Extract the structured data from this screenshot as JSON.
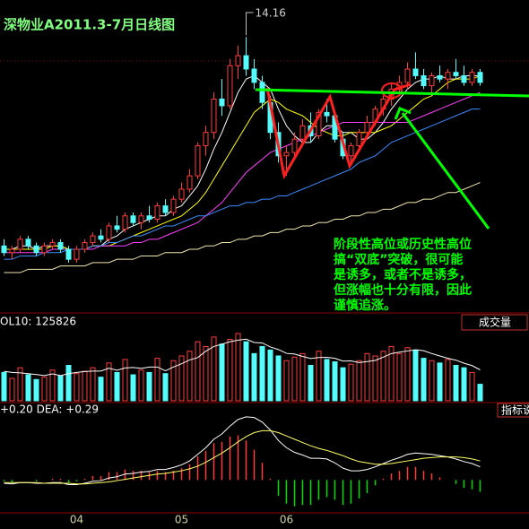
{
  "chart_data": [
    {
      "type": "candlestick",
      "title": "深物业A2011.3-7月日线图",
      "categories": [
        null,
        null,
        null,
        null,
        null,
        null,
        null,
        null,
        null,
        "04",
        null,
        null,
        null,
        null,
        null,
        null,
        null,
        null,
        null,
        null,
        null,
        null,
        "05",
        null,
        null,
        null,
        null,
        null,
        null,
        null,
        null,
        null,
        null,
        null,
        null,
        "06",
        null,
        null,
        null,
        null,
        null,
        null,
        null,
        null,
        null,
        null,
        null,
        null,
        null,
        null,
        null,
        null,
        null,
        null,
        null,
        null,
        null,
        null,
        null,
        null
      ],
      "candles": [
        [
          7.9,
          8.1,
          7.6,
          7.7
        ],
        [
          7.7,
          7.9,
          7.5,
          7.8
        ],
        [
          7.8,
          8.2,
          7.7,
          8.1
        ],
        [
          8.1,
          8.2,
          7.8,
          7.9
        ],
        [
          7.9,
          8.0,
          7.6,
          7.7
        ],
        [
          7.7,
          8.0,
          7.6,
          7.9
        ],
        [
          7.9,
          8.1,
          7.8,
          8.0
        ],
        [
          8.0,
          8.1,
          7.7,
          7.8
        ],
        [
          7.8,
          7.9,
          7.4,
          7.5
        ],
        [
          7.5,
          7.9,
          7.4,
          7.8
        ],
        [
          7.8,
          8.1,
          7.7,
          8.0
        ],
        [
          8.0,
          8.3,
          7.9,
          8.2
        ],
        [
          8.2,
          8.4,
          8.0,
          8.1
        ],
        [
          8.1,
          8.6,
          8.0,
          8.5
        ],
        [
          8.5,
          8.8,
          8.3,
          8.4
        ],
        [
          8.4,
          8.9,
          8.3,
          8.8
        ],
        [
          8.8,
          8.9,
          8.5,
          8.6
        ],
        [
          8.6,
          8.9,
          8.4,
          8.8
        ],
        [
          8.8,
          9.1,
          8.6,
          8.7
        ],
        [
          8.7,
          9.2,
          8.6,
          9.1
        ],
        [
          9.1,
          9.3,
          8.8,
          8.9
        ],
        [
          8.9,
          9.4,
          8.8,
          9.3
        ],
        [
          9.3,
          9.8,
          9.2,
          9.6
        ],
        [
          9.6,
          10.2,
          9.5,
          10.0
        ],
        [
          10.0,
          11.0,
          9.9,
          10.9
        ],
        [
          10.9,
          11.5,
          10.6,
          11.3
        ],
        [
          11.3,
          12.5,
          11.1,
          12.3
        ],
        [
          12.3,
          12.9,
          11.8,
          12.1
        ],
        [
          12.1,
          13.5,
          12.0,
          13.3
        ],
        [
          13.3,
          13.9,
          12.9,
          13.6
        ],
        [
          13.6,
          14.16,
          13.0,
          13.2
        ],
        [
          13.2,
          13.5,
          12.6,
          12.8
        ],
        [
          12.8,
          13.0,
          12.0,
          12.2
        ],
        [
          12.2,
          12.4,
          11.1,
          11.3
        ],
        [
          11.3,
          11.6,
          10.4,
          10.6
        ],
        [
          10.6,
          10.9,
          10.0,
          10.7
        ],
        [
          10.7,
          11.3,
          10.5,
          11.1
        ],
        [
          11.1,
          11.7,
          10.9,
          11.5
        ],
        [
          11.5,
          11.9,
          11.0,
          11.2
        ],
        [
          11.2,
          12.0,
          11.1,
          11.9
        ],
        [
          11.9,
          12.3,
          11.6,
          11.8
        ],
        [
          11.8,
          11.9,
          11.0,
          11.1
        ],
        [
          11.1,
          11.3,
          10.5,
          10.6
        ],
        [
          10.6,
          11.0,
          10.3,
          10.9
        ],
        [
          10.9,
          11.4,
          10.7,
          11.3
        ],
        [
          11.3,
          11.8,
          11.1,
          11.6
        ],
        [
          11.6,
          12.1,
          11.5,
          12.0
        ],
        [
          12.0,
          12.4,
          11.8,
          12.3
        ],
        [
          12.3,
          12.8,
          12.1,
          12.6
        ],
        [
          12.6,
          13.0,
          12.4,
          12.8
        ],
        [
          12.8,
          13.4,
          12.6,
          13.2
        ],
        [
          13.2,
          13.7,
          12.9,
          13.0
        ],
        [
          13.0,
          13.2,
          12.6,
          12.7
        ],
        [
          12.7,
          13.1,
          12.5,
          13.0
        ],
        [
          13.0,
          13.3,
          12.8,
          12.9
        ],
        [
          12.9,
          13.2,
          12.6,
          13.1
        ],
        [
          13.1,
          13.5,
          12.9,
          13.0
        ],
        [
          13.0,
          13.3,
          12.7,
          12.8
        ],
        [
          12.8,
          13.2,
          12.7,
          13.1
        ],
        [
          13.1,
          13.2,
          12.7,
          12.8
        ]
      ],
      "up_color": "#ff3c3c",
      "down_color": "#54fcfc",
      "ylim": [
        6,
        15
      ],
      "lines": [
        {
          "color": "#ffffff",
          "values": [
            7.8,
            7.8,
            7.9,
            7.9,
            7.8,
            7.9,
            7.9,
            7.9,
            7.8,
            7.8,
            7.8,
            7.9,
            7.9,
            8.1,
            8.2,
            8.4,
            8.5,
            8.6,
            8.7,
            8.8,
            8.8,
            9.0,
            9.1,
            9.4,
            9.7,
            10.2,
            10.8,
            11.3,
            11.9,
            12.5,
            12.9,
            13.0,
            12.8,
            12.6,
            12.0,
            11.5,
            11.2,
            11.0,
            11.0,
            11.3,
            11.5,
            11.5,
            11.3,
            11.3,
            11.1,
            11.1,
            11.3,
            11.6,
            12.0,
            12.3,
            12.6,
            12.8,
            12.9,
            12.9,
            13.0,
            12.9,
            12.9,
            13.0,
            13.0,
            13.0
          ]
        },
        {
          "color": "#ffff00",
          "values": [
            7.8,
            7.8,
            7.8,
            7.8,
            7.8,
            7.8,
            7.9,
            7.9,
            7.8,
            7.8,
            7.8,
            7.9,
            7.9,
            7.9,
            8.0,
            8.1,
            8.2,
            8.3,
            8.4,
            8.5,
            8.6,
            8.7,
            8.8,
            9.0,
            9.2,
            9.5,
            9.9,
            10.3,
            10.7,
            11.1,
            11.5,
            11.9,
            12.1,
            12.3,
            12.2,
            12.0,
            11.9,
            11.8,
            11.6,
            11.4,
            11.3,
            11.2,
            11.2,
            11.3,
            11.3,
            11.3,
            11.3,
            11.4,
            11.5,
            11.7,
            11.9,
            12.1,
            12.3,
            12.4,
            12.6,
            12.8,
            12.9,
            12.9,
            12.9,
            13.0
          ]
        },
        {
          "color": "#ff40ff",
          "values": [
            7.7,
            7.7,
            7.7,
            7.7,
            7.7,
            7.7,
            7.8,
            7.8,
            7.8,
            7.8,
            7.8,
            7.8,
            7.9,
            7.9,
            7.9,
            7.9,
            8.0,
            8.0,
            8.1,
            8.1,
            8.2,
            8.3,
            8.4,
            8.5,
            8.6,
            8.8,
            9.0,
            9.2,
            9.5,
            9.8,
            10.1,
            10.3,
            10.5,
            10.7,
            10.8,
            10.9,
            11.0,
            11.1,
            11.2,
            11.3,
            11.4,
            11.5,
            11.6,
            11.6,
            11.6,
            11.6,
            11.6,
            11.6,
            11.6,
            11.6,
            11.6,
            11.7,
            11.8,
            11.9,
            12.0,
            12.1,
            12.2,
            12.3,
            12.4,
            12.5
          ]
        },
        {
          "color": "#3a8cff",
          "values": [
            7.5,
            7.5,
            7.6,
            7.6,
            7.6,
            7.7,
            7.7,
            7.7,
            7.8,
            7.8,
            7.8,
            7.9,
            7.9,
            8.0,
            8.0,
            8.1,
            8.2,
            8.2,
            8.3,
            8.4,
            8.5,
            8.5,
            8.6,
            8.7,
            8.8,
            8.8,
            8.9,
            9.0,
            9.1,
            9.1,
            9.2,
            9.2,
            9.3,
            9.3,
            9.4,
            9.4,
            9.5,
            9.6,
            9.7,
            9.8,
            9.9,
            10.0,
            10.1,
            10.2,
            10.4,
            10.5,
            10.6,
            10.8,
            11.0,
            11.1,
            11.2,
            11.3,
            11.4,
            11.5,
            11.6,
            11.7,
            11.8,
            11.9,
            12.0,
            12.0
          ]
        },
        {
          "color": "#f0e6b0",
          "values": [
            7.1,
            7.1,
            7.1,
            7.2,
            7.2,
            7.2,
            7.2,
            7.3,
            7.3,
            7.3,
            7.3,
            7.4,
            7.4,
            7.4,
            7.5,
            7.5,
            7.5,
            7.6,
            7.6,
            7.6,
            7.7,
            7.7,
            7.7,
            7.8,
            7.8,
            7.9,
            7.9,
            8.0,
            8.0,
            8.1,
            8.1,
            8.2,
            8.2,
            8.3,
            8.3,
            8.4,
            8.4,
            8.5,
            8.5,
            8.6,
            8.6,
            8.7,
            8.7,
            8.8,
            8.8,
            8.9,
            8.9,
            9.0,
            9.0,
            9.1,
            9.2,
            9.2,
            9.3,
            9.3,
            9.4,
            9.5,
            9.5,
            9.6,
            9.7,
            9.8
          ]
        }
      ],
      "annotation": [
        "阶段性高位或历史性高位",
        "搞“双底”突破，很可能",
        "是诱多，或者不是诱多，",
        "但涨幅也十分有限，因此",
        "谨慎追涨。"
      ]
    },
    {
      "type": "volume",
      "header": "OL10: 125826",
      "button": "成交量",
      "values": [
        120000,
        95000,
        140000,
        110000,
        90000,
        100000,
        130000,
        105000,
        150000,
        115000,
        125000,
        140000,
        100000,
        160000,
        120000,
        175000,
        110000,
        130000,
        120000,
        180000,
        115000,
        170000,
        190000,
        210000,
        250000,
        230000,
        270000,
        240000,
        260000,
        285000,
        250000,
        200000,
        230000,
        215000,
        190000,
        170000,
        185000,
        200000,
        150000,
        210000,
        175000,
        165000,
        140000,
        155000,
        170000,
        200000,
        190000,
        210000,
        230000,
        200000,
        225000,
        215000,
        180000,
        170000,
        160000,
        175000,
        150000,
        140000,
        120000,
        70000
      ],
      "line": {
        "color": "#ffffff",
        "values": [
          125000,
          120000,
          118000,
          115000,
          111000,
          107000,
          114000,
          107000,
          115000,
          120000,
          124000,
          126000,
          126000,
          138000,
          129000,
          139000,
          141000,
          137000,
          143000,
          143000,
          127000,
          143000,
          157000,
          173000,
          183000,
          210000,
          230000,
          240000,
          250000,
          257000,
          261000,
          247000,
          245000,
          228000,
          217000,
          201000,
          198000,
          188000,
          179000,
          183000,
          184000,
          180000,
          168000,
          169000,
          162000,
          166000,
          171000,
          185000,
          200000,
          206000,
          211000,
          216000,
          212000,
          200000,
          190000,
          180000,
          172000,
          159000,
          149000,
          131000
        ]
      },
      "ylim": [
        0,
        300000
      ]
    },
    {
      "type": "macd",
      "header": "+0.20 DEA: +0.29",
      "button": "指标说",
      "hist": [
        -0.02,
        -0.04,
        0,
        0,
        -0.02,
        0,
        0.02,
        0.02,
        -0.04,
        -0.02,
        0.02,
        0.06,
        0.06,
        0.12,
        0.12,
        0.16,
        0.14,
        0.14,
        0.12,
        0.14,
        0.12,
        0.14,
        0.18,
        0.24,
        0.36,
        0.44,
        0.56,
        0.58,
        0.66,
        0.68,
        0.6,
        0.46,
        0.26,
        0.02,
        -0.24,
        -0.36,
        -0.4,
        -0.38,
        -0.38,
        -0.3,
        -0.26,
        -0.3,
        -0.38,
        -0.36,
        -0.28,
        -0.2,
        -0.08,
        0.02,
        0.1,
        0.14,
        0.2,
        0.2,
        0.14,
        0.1,
        0.04,
        0,
        -0.06,
        -0.12,
        -0.14,
        -0.18
      ],
      "up_color": "#ff3c3c",
      "down_color": "#00e000",
      "lines": [
        {
          "color": "#ffffff",
          "values": [
            -0.05,
            -0.06,
            -0.04,
            -0.04,
            -0.05,
            -0.05,
            -0.04,
            -0.04,
            -0.07,
            -0.07,
            -0.05,
            -0.02,
            -0.01,
            0.03,
            0.05,
            0.09,
            0.1,
            0.12,
            0.13,
            0.16,
            0.16,
            0.19,
            0.23,
            0.29,
            0.39,
            0.49,
            0.62,
            0.7,
            0.82,
            0.92,
            0.96,
            0.95,
            0.88,
            0.76,
            0.6,
            0.49,
            0.42,
            0.38,
            0.33,
            0.33,
            0.32,
            0.26,
            0.18,
            0.14,
            0.14,
            0.16,
            0.2,
            0.25,
            0.3,
            0.34,
            0.39,
            0.41,
            0.4,
            0.39,
            0.37,
            0.35,
            0.32,
            0.28,
            0.25,
            0.2
          ]
        },
        {
          "color": "#ffff66",
          "values": [
            -0.04,
            -0.04,
            -0.04,
            -0.04,
            -0.04,
            -0.05,
            -0.05,
            -0.05,
            -0.05,
            -0.06,
            -0.06,
            -0.05,
            -0.04,
            -0.03,
            -0.01,
            0.01,
            0.03,
            0.05,
            0.07,
            0.09,
            0.1,
            0.12,
            0.14,
            0.17,
            0.21,
            0.27,
            0.34,
            0.41,
            0.49,
            0.58,
            0.66,
            0.72,
            0.75,
            0.75,
            0.72,
            0.67,
            0.62,
            0.57,
            0.52,
            0.48,
            0.45,
            0.41,
            0.37,
            0.32,
            0.28,
            0.26,
            0.24,
            0.24,
            0.25,
            0.27,
            0.29,
            0.31,
            0.33,
            0.34,
            0.35,
            0.35,
            0.35,
            0.34,
            0.32,
            0.29
          ]
        }
      ],
      "ylim": [
        -0.5,
        1.0
      ]
    }
  ]
}
